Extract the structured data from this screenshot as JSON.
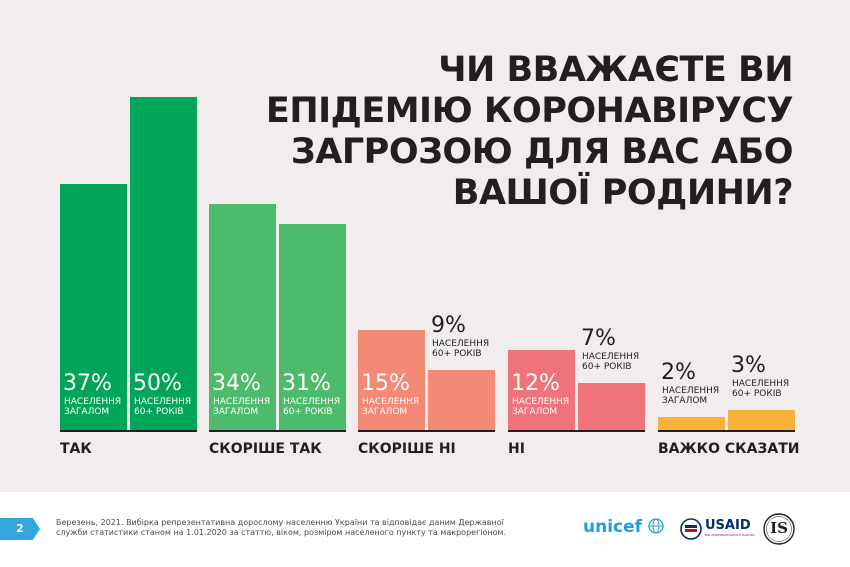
{
  "title_lines": [
    "ЧИ ВВАЖАЄТЕ ВИ",
    "ЕПІДЕМІЮ КОРОНАВІРУСУ",
    "ЗАГРОЗОЮ ДЛЯ ВАС АБО",
    "ВАШОЇ РОДИНИ?"
  ],
  "chart_data": {
    "type": "bar",
    "categories": [
      "ТАК",
      "СКОРІШЕ ТАК",
      "СКОРІШЕ НІ",
      "НІ",
      "ВАЖКО СКАЗАТИ"
    ],
    "series": [
      {
        "name": "НАСЕЛЕННЯ ЗАГАЛОМ",
        "values": [
          37,
          34,
          15,
          12,
          2
        ]
      },
      {
        "name": "НАСЕЛЕННЯ 60+ РОКІВ",
        "values": [
          50,
          31,
          9,
          7,
          3
        ]
      }
    ],
    "value_labels": [
      [
        "37%",
        "50%"
      ],
      [
        "34%",
        "31%"
      ],
      [
        "15%",
        "9%"
      ],
      [
        "12%",
        "7%"
      ],
      [
        "2%",
        "3%"
      ]
    ],
    "series_labels": [
      [
        "НАСЕЛЕННЯ",
        "ЗАГАЛОМ"
      ],
      [
        "НАСЕЛЕННЯ",
        "60+ РОКІВ"
      ]
    ],
    "colors": [
      [
        "#00a55a",
        "#00a55a"
      ],
      [
        "#4dbb6c",
        "#4dbb6c"
      ],
      [
        "#f28a76",
        "#f28a76"
      ],
      [
        "#ef737b",
        "#ef737b"
      ],
      [
        "#f8b139",
        "#f8b139"
      ]
    ],
    "ylim": [
      0,
      50
    ]
  },
  "footer": {
    "page_number": "2",
    "note": "Березень, 2021. Вибірка репрезентативна дорослому населенню України та відповідає даним Державної служби статистики станом на 1.01.2020 за статтю, віком, розміром населеного пункту та макрорегіоном.",
    "logos": {
      "unicef": "unicef",
      "usaid": "USAID",
      "usaid_tagline": "ВІД АМЕРИКАНСЬКОГО НАРОДУ",
      "is": "IS"
    },
    "colors": {
      "page_badge": "#33a6dd",
      "unicef": "#1ca0db",
      "usaid_blue": "#002f6c",
      "usaid_red": "#ba0c2f"
    }
  }
}
